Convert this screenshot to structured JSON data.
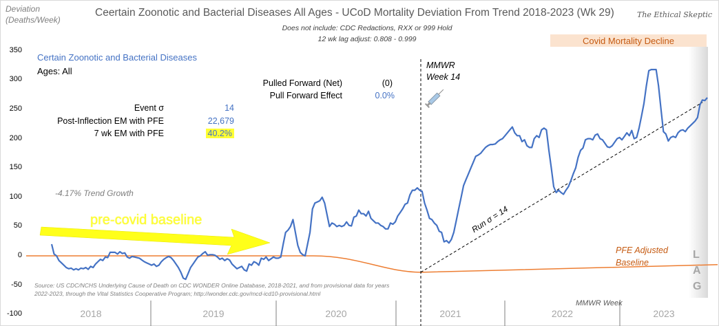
{
  "chart_data": {
    "type": "line",
    "title": "Ceertain Zoonotic and Bacterial Diseases All Ages - UCoD Mortality Deviation From Trend  2018-2023 (Wk 29)",
    "subtitle": [
      "Does not include: CDC Redactions,  RXX or 999 Hold",
      "12 wk lag adjust: 0.808 - 0.999"
    ],
    "brand": "The Ethical Skeptic",
    "ylabel": [
      "Deviation",
      "(Deaths/Week)"
    ],
    "xlabel": "MMWR Week",
    "ylim": [
      -100,
      350
    ],
    "yticks": [
      350,
      300,
      250,
      200,
      150,
      100,
      50,
      0,
      -50,
      -100
    ],
    "year_labels": [
      "2018",
      "2019",
      "2020",
      "2021",
      "2022",
      "2023"
    ],
    "grid": false,
    "series": [
      {
        "name": "Certain Zoonotic and Bacterial Diseases",
        "color": "#4472c4",
        "note": "weekly deviation, weeks 2018-wk8 to 2023-wk29 (approx.)",
        "values": [
          20,
          3,
          0,
          -8,
          -12,
          -16,
          -20,
          -22,
          -21,
          -24,
          -22,
          -24,
          -21,
          -22,
          -20,
          -23,
          -18,
          -20,
          -14,
          -10,
          -6,
          -8,
          -2,
          -3,
          6,
          6,
          6,
          3,
          7,
          4,
          5,
          -2,
          -4,
          -1,
          -2,
          -3,
          -4,
          -7,
          -10,
          -12,
          -14,
          -16,
          -14,
          -18,
          -16,
          -10,
          -6,
          -3,
          -1,
          -3,
          -8,
          -14,
          -20,
          -28,
          -38,
          -40,
          -30,
          -20,
          -14,
          -8,
          -2,
          0,
          4,
          7,
          1,
          2,
          2,
          1,
          -2,
          -6,
          -4,
          -8,
          -5,
          -7,
          -14,
          -18,
          -22,
          -20,
          -18,
          -24,
          -26,
          -14,
          -16,
          -10,
          -12,
          -16,
          -4,
          -6,
          -2,
          -8,
          -5,
          -2,
          -4,
          -4,
          -2,
          20,
          40,
          44,
          50,
          62,
          40,
          18,
          6,
          2,
          0,
          20,
          40,
          80,
          90,
          92,
          94,
          100,
          90,
          70,
          50,
          56,
          54,
          50,
          52,
          50,
          52,
          58,
          52,
          51,
          66,
          68,
          78,
          72,
          72,
          68,
          76,
          64,
          60,
          56,
          56,
          52,
          50,
          46,
          46,
          56,
          54,
          58,
          68,
          74,
          80,
          88,
          90,
          104,
          112,
          112,
          116,
          112,
          110,
          90,
          78,
          64,
          62,
          56,
          52,
          42,
          40,
          24,
          26,
          22,
          28,
          40,
          60,
          80,
          100,
          120,
          130,
          140,
          150,
          160,
          170,
          172,
          175,
          180,
          185,
          188,
          190,
          190,
          191,
          195,
          198,
          200,
          205,
          210,
          215,
          220,
          210,
          205,
          205,
          195,
          198,
          188,
          185,
          185,
          200,
          205,
          202,
          215,
          218,
          215,
          180,
          150,
          118,
          108,
          112,
          108,
          105,
          112,
          118,
          128,
          140,
          150,
          168,
          180,
          184,
          198,
          200,
          200,
          198,
          206,
          208,
          200,
          198,
          192,
          186,
          185,
          188,
          194,
          200,
          202,
          198,
          204,
          210,
          205,
          214,
          200,
          202,
          218,
          238,
          260,
          290,
          316,
          318,
          318,
          318,
          290,
          250,
          212,
          208,
          196,
          202,
          204,
          202,
          210,
          214,
          215,
          212,
          218,
          222,
          226,
          230,
          236,
          258,
          266,
          265,
          270
        ]
      },
      {
        "name": "PFE Adjusted Baseline",
        "color": "#ed7d31",
        "values_desc": "0 through mid-2020, declining to ~-28 around 2021 wk14, then rising linearly to ~-15 by 2023 wk29"
      },
      {
        "name": "Run σ = 14 trend",
        "color": "#000000",
        "style": "dashed",
        "start": {
          "label": "2021 wk14",
          "value": -28
        },
        "end": {
          "label": "2023 wk29",
          "value": 262
        }
      }
    ],
    "annotations": [
      {
        "text": "MMWR Week 14",
        "at": "2021 wk14 (vertical dashed line)"
      },
      {
        "text": "Covid Mortality Decline",
        "band": "2022-2023"
      },
      {
        "text": "pre-covid baseline",
        "arrow": "yellow, pointing right"
      },
      {
        "text": "-4.17% Trend Growth"
      },
      {
        "text": "Run σ = 14"
      },
      {
        "text": "PFE Adjusted Baseline"
      },
      {
        "text": "LAG"
      }
    ]
  },
  "panel": {
    "series_label": "Certain Zoonotic and Bacterial Diseases",
    "ages": "Ages: All",
    "stats": [
      {
        "label": "Pulled Forward (Net)",
        "value": "(0)"
      },
      {
        "label": "Pull Forward Effect",
        "value": "0.0%"
      },
      {
        "label": "Event σ",
        "value": "14"
      },
      {
        "label": "Post-Inflection EM with PFE",
        "value": "22,679"
      },
      {
        "label": "7 wk EM with PFE",
        "value": "40.2%"
      }
    ]
  },
  "labels": {
    "trend_growth": "-4.17% Trend Growth",
    "pre_covid": "pre-covid baseline",
    "mmwr_line1": "MMWR",
    "mmwr_line2": "Week 14",
    "run_sigma": "Run σ = 14",
    "pfe_line1": "PFE Adjusted",
    "pfe_line2": "Baseline",
    "covid_decline": "Covid Mortality Decline",
    "lag": [
      "L",
      "A",
      "G"
    ],
    "mmwr_week": "MMWR Week",
    "source_line1": "Source: US CDC/NCHS Underlying Cause of Death on CDC WONDER Online Database, 2018-2021, and from provisional data for years",
    "source_line2": "2022-2023, through the Vital Statistics Cooperative Program; http://wonder.cdc.gov/mcd-icd10-provisional.html",
    "syringe_icon": "syringe-icon"
  }
}
